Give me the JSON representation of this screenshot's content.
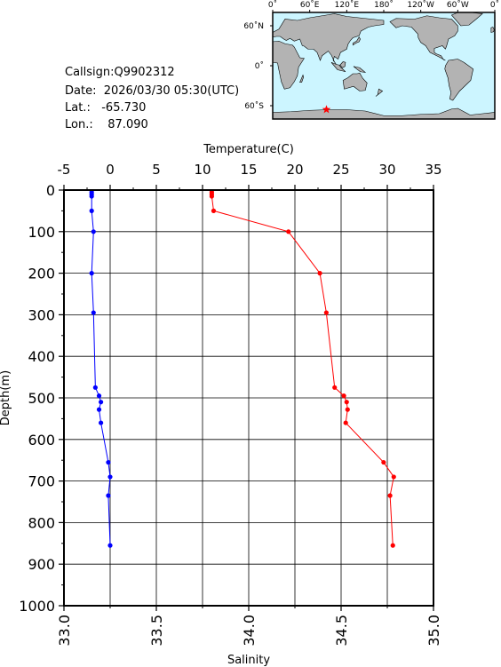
{
  "station": {
    "callsign_label": "Callsign:",
    "callsign": "Q9902312",
    "date_label": "Date:",
    "date": "2026/03/30 05:30(UTC)",
    "lat_label": "Lat.:",
    "lat": "-65.730",
    "lon_label": "Lon.:",
    "lon": "87.090"
  },
  "map": {
    "lon_labels": [
      "0˚",
      "60˚E",
      "120˚E",
      "180˚",
      "120˚W",
      "60˚W",
      "0˚"
    ],
    "lat_labels": [
      "60˚N",
      "0˚",
      "60˚S"
    ],
    "ocean_color": "#ccf5ff",
    "land_color": "#b3b3b3",
    "marker_color": "#ff0000",
    "marker": {
      "lon": 87.09,
      "lat": -65.73
    }
  },
  "chart_data": {
    "type": "line",
    "xlabel_top": "Temperature(C)",
    "xlabel_bottom": "Salinity",
    "ylabel": "Depth(m)",
    "temperature_axis": {
      "lim": [
        -5,
        35
      ],
      "ticks": [
        "-5",
        "0",
        "5",
        "10",
        "15",
        "20",
        "25",
        "30",
        "35"
      ]
    },
    "salinity_axis": {
      "lim": [
        33.0,
        35.0
      ],
      "ticks": [
        "33.0",
        "33.5",
        "34.0",
        "34.5",
        "35.0"
      ]
    },
    "depth_axis": {
      "lim": [
        0,
        1000
      ],
      "ticks": [
        "0",
        "100",
        "200",
        "300",
        "400",
        "500",
        "600",
        "700",
        "800",
        "900",
        "1000"
      ]
    },
    "grid": true,
    "series": [
      {
        "color": "#ff0000",
        "axis": "temperature",
        "points": [
          {
            "depth": 5,
            "value": 11.0
          },
          {
            "depth": 10,
            "value": 11.0
          },
          {
            "depth": 15,
            "value": 11.0
          },
          {
            "depth": 50,
            "value": 11.2
          },
          {
            "depth": 100,
            "value": 19.3
          },
          {
            "depth": 200,
            "value": 22.7
          },
          {
            "depth": 295,
            "value": 23.4
          },
          {
            "depth": 475,
            "value": 24.3
          },
          {
            "depth": 495,
            "value": 25.3
          },
          {
            "depth": 510,
            "value": 25.6
          },
          {
            "depth": 528,
            "value": 25.7
          },
          {
            "depth": 560,
            "value": 25.5
          },
          {
            "depth": 655,
            "value": 29.6
          },
          {
            "depth": 690,
            "value": 30.7
          },
          {
            "depth": 735,
            "value": 30.3
          },
          {
            "depth": 855,
            "value": 30.6
          }
        ]
      },
      {
        "color": "#0000ff",
        "axis": "salinity",
        "points": [
          {
            "depth": 5,
            "value": 33.15
          },
          {
            "depth": 10,
            "value": 33.15
          },
          {
            "depth": 15,
            "value": 33.15
          },
          {
            "depth": 50,
            "value": 33.15
          },
          {
            "depth": 100,
            "value": 33.16
          },
          {
            "depth": 200,
            "value": 33.15
          },
          {
            "depth": 295,
            "value": 33.16
          },
          {
            "depth": 475,
            "value": 33.17
          },
          {
            "depth": 495,
            "value": 33.19
          },
          {
            "depth": 510,
            "value": 33.2
          },
          {
            "depth": 528,
            "value": 33.19
          },
          {
            "depth": 560,
            "value": 33.2
          },
          {
            "depth": 655,
            "value": 33.24
          },
          {
            "depth": 690,
            "value": 33.25
          },
          {
            "depth": 735,
            "value": 33.24
          },
          {
            "depth": 855,
            "value": 33.25
          }
        ]
      }
    ]
  }
}
